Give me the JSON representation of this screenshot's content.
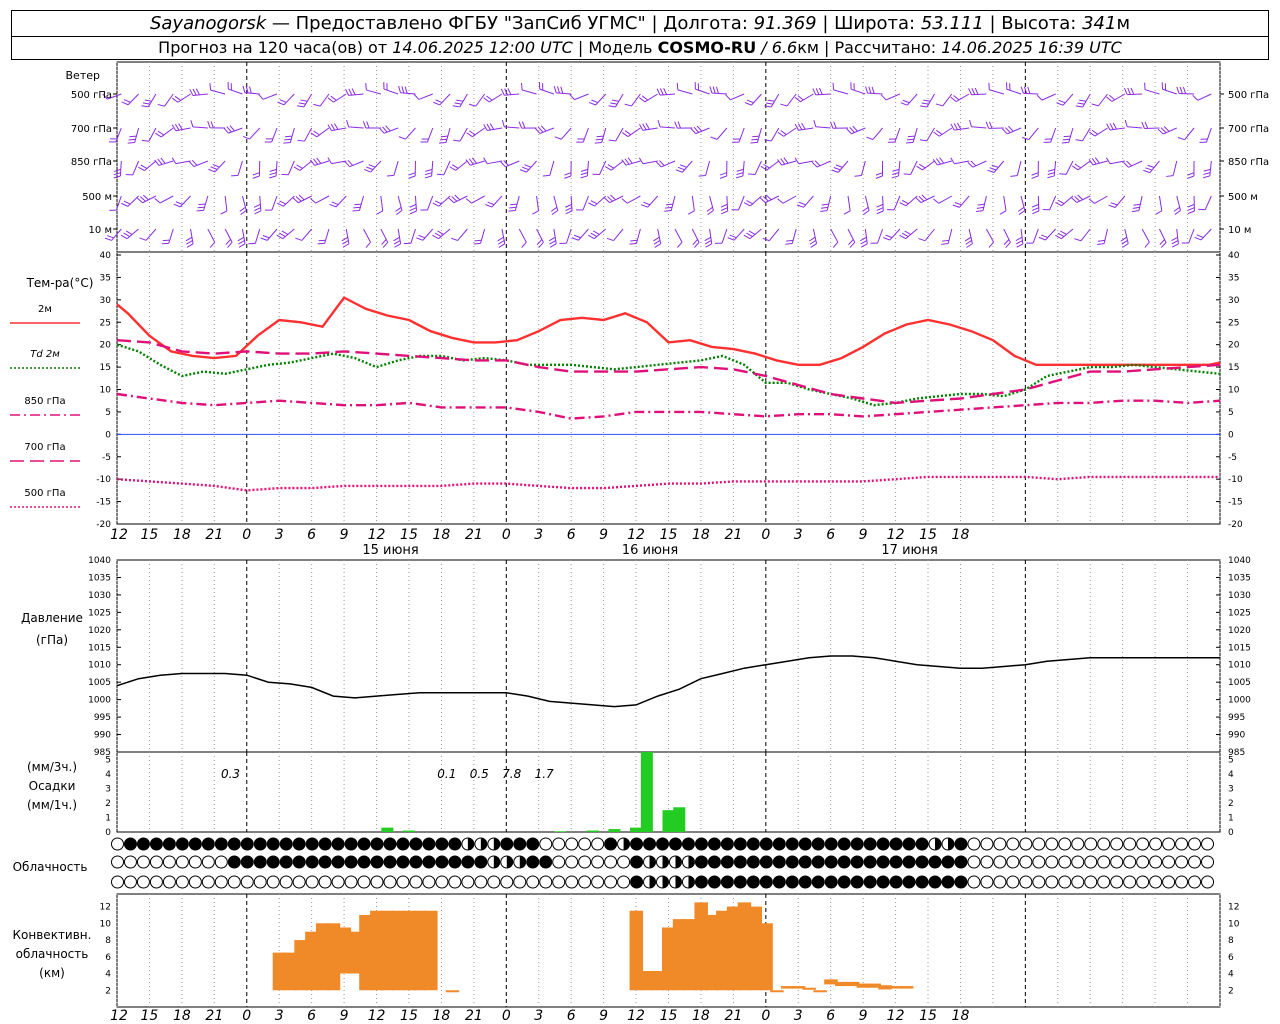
{
  "header": {
    "station": "Sayanogorsk",
    "dash": " — Предоставлено ФГБУ \"ЗапСиб УГМС\" | Долгота: ",
    "lon": "91.369",
    "lat_label": " | Широта: ",
    "lat": "53.111",
    "alt_label": " | Высота: ",
    "alt": "341",
    "alt_unit": "м",
    "forecast_label": "Прогноз на 120 часа(ов) от ",
    "forecast_date": "14.06.2025 12:00 UTC",
    "model_label": "  | Модель ",
    "model": "COSMO-RU",
    "model_res": " / 6.6",
    "model_res_unit": "км",
    "calc_label": " | Рассчитано: ",
    "calc_date": "14.06.2025 16:39 UTC"
  },
  "wind_panel": {
    "title": "Ветер",
    "levels": [
      "500 гПа",
      "700 гПа",
      "850 гПа",
      "500 м",
      "10  м"
    ]
  },
  "temp_panel": {
    "title": "Тем-ра(°C)",
    "legend": [
      {
        "label": "2м",
        "color": "#ff3030",
        "style": "solid"
      },
      {
        "label": "Td  2м",
        "color": "#008000",
        "style": "dotted"
      },
      {
        "label": "850 гПа",
        "color": "#e0107a",
        "style": "dashdot"
      },
      {
        "label": "700 гПа",
        "color": "#e0107a",
        "style": "dashed"
      },
      {
        "label": "500 гПа",
        "color": "#e0107a",
        "style": "dotted"
      }
    ],
    "yticks": [
      "40",
      "35",
      "30",
      "25",
      "20",
      "15",
      "10",
      "5",
      "0",
      "-5",
      "-10",
      "-15",
      "-20"
    ]
  },
  "time_axis": {
    "hour_labels": [
      "12",
      "15",
      "18",
      "21",
      "0",
      "3",
      "6",
      "9",
      "12",
      "15",
      "18",
      "21",
      "0",
      "3",
      "6",
      "9",
      "12",
      "15",
      "18",
      "21",
      "0",
      "3",
      "6",
      "9",
      "12",
      "15",
      "18"
    ],
    "dates": [
      "15 июня",
      "16 июня",
      "17 июня"
    ]
  },
  "pressure_panel": {
    "title_1": "Давление",
    "title_2": "(гПа)",
    "yticks": [
      "1040",
      "1035",
      "1030",
      "1025",
      "1020",
      "1015",
      "1010",
      "1005",
      "1000",
      "995",
      "990",
      "985"
    ]
  },
  "precip_panel": {
    "unit_1": "(мм/3ч.)",
    "title": "Осадки",
    "unit_2": "(мм/1ч.)",
    "yticks": [
      "5",
      "4",
      "3",
      "2",
      "1",
      "0"
    ],
    "labels": [
      {
        "text": "0.3",
        "hour": 10.5
      },
      {
        "text": "0.1",
        "hour": 30.5
      },
      {
        "text": "0.5",
        "hour": 33.5
      },
      {
        "text": "7.8",
        "hour": 36.5
      },
      {
        "text": "1.7",
        "hour": 39.5
      }
    ]
  },
  "cloud_panel": {
    "title": "Облачность"
  },
  "conv_panel": {
    "title_1": "Конвективн.",
    "title_2": "облачность",
    "title_3": "(км)",
    "yticks": [
      "12",
      "10",
      "8",
      "6",
      "4",
      "2"
    ]
  },
  "chart_data": [
    {
      "type": "line",
      "title": "Тем-ра(°C)",
      "x_unit": "hours since 14.06.2025 12:00 UTC",
      "ylim": [
        -20,
        40
      ],
      "series": [
        {
          "name": "2м",
          "color": "#ff3030",
          "x": [
            0,
            1,
            3,
            5,
            7,
            9,
            11,
            13,
            15,
            17,
            19,
            21,
            23,
            25,
            27,
            29,
            31,
            33,
            35,
            37,
            39,
            41,
            43,
            45,
            47,
            49,
            51,
            53,
            55,
            57,
            59,
            61,
            63,
            65,
            67,
            69,
            71,
            73,
            75,
            77,
            79,
            81,
            83,
            85,
            87,
            89,
            91,
            93,
            95,
            97,
            99,
            101,
            102
          ],
          "y": [
            29,
            27,
            22,
            18.5,
            17.5,
            17,
            17.5,
            22,
            25.5,
            25,
            24,
            30.5,
            28,
            26.5,
            25.5,
            23,
            21.5,
            20.5,
            20.5,
            21,
            23,
            25.5,
            26,
            25.5,
            27,
            25,
            20.5,
            21,
            19.5,
            19,
            18,
            16.5,
            15.5,
            15.5,
            17,
            19.5,
            22.5,
            24.5,
            25.5,
            24.5,
            23,
            21,
            17.5,
            15.5,
            15.5,
            15.5,
            15.5,
            15.5,
            15.5,
            15.5,
            15.5,
            15.5,
            16
          ]
        },
        {
          "name": "Td  2м",
          "color": "#008000",
          "x": [
            0,
            2,
            4,
            6,
            8,
            10,
            12,
            14,
            16,
            18,
            20,
            22,
            24,
            26,
            28,
            30,
            32,
            34,
            36,
            38,
            40,
            42,
            44,
            46,
            48,
            50,
            52,
            54,
            56,
            58,
            60,
            62,
            64,
            66,
            68,
            70,
            72,
            74,
            76,
            78,
            80,
            82,
            84,
            86,
            88,
            90,
            92,
            94,
            96,
            98,
            100,
            102
          ],
          "y": [
            20,
            18.5,
            15.5,
            13,
            14,
            13.5,
            14.5,
            15.5,
            16,
            17,
            18,
            17,
            15,
            16.5,
            17.5,
            17.5,
            16.5,
            17,
            16.5,
            15.5,
            15.5,
            15.5,
            15,
            14.5,
            15,
            15.5,
            16,
            16.5,
            17.5,
            15.5,
            11.5,
            11.5,
            10,
            9,
            8,
            6.5,
            7,
            8,
            8.5,
            9,
            9,
            8.5,
            10,
            13,
            14,
            15,
            15,
            15.5,
            15,
            14.5,
            14,
            13.5
          ]
        },
        {
          "name": "850 гПа",
          "color": "#e0107a",
          "x": [
            0,
            3,
            6,
            9,
            12,
            15,
            18,
            21,
            24,
            27,
            30,
            33,
            36,
            39,
            42,
            45,
            48,
            51,
            54,
            57,
            60,
            63,
            66,
            69,
            72,
            75,
            78,
            81,
            84,
            87,
            90,
            93,
            96,
            99,
            102
          ],
          "y": [
            9,
            8,
            7,
            6.5,
            7,
            7.5,
            7,
            6.5,
            6.5,
            7,
            6,
            6,
            6,
            5,
            3.5,
            4,
            5,
            5,
            5,
            4.5,
            4,
            4.5,
            4.5,
            4,
            4.5,
            5,
            5.5,
            6,
            6.5,
            7,
            7,
            7.5,
            7.5,
            7,
            7.5
          ]
        },
        {
          "name": "700 гПа",
          "color": "#e0107a",
          "x": [
            0,
            3,
            6,
            9,
            12,
            15,
            18,
            21,
            24,
            27,
            30,
            33,
            36,
            39,
            42,
            45,
            48,
            51,
            54,
            57,
            60,
            63,
            66,
            69,
            72,
            75,
            78,
            81,
            84,
            87,
            90,
            93,
            96,
            99,
            102
          ],
          "y": [
            21,
            20.5,
            18.5,
            18,
            18.5,
            18,
            18,
            18.5,
            18,
            17.5,
            17,
            16.5,
            16.5,
            15,
            14,
            14,
            14,
            14.5,
            15,
            14.5,
            13,
            11,
            9,
            8,
            7,
            7.5,
            8,
            9,
            10,
            12,
            14,
            14,
            14.5,
            15,
            15.5
          ]
        },
        {
          "name": "500 гПа",
          "color": "#e0107a",
          "x": [
            0,
            3,
            6,
            9,
            12,
            15,
            18,
            21,
            24,
            27,
            30,
            33,
            36,
            39,
            42,
            45,
            48,
            51,
            54,
            57,
            60,
            63,
            66,
            69,
            72,
            75,
            78,
            81,
            84,
            87,
            90,
            93,
            96,
            99,
            102
          ],
          "y": [
            -10,
            -10.5,
            -11,
            -11.5,
            -12.5,
            -12,
            -12,
            -11.5,
            -11.5,
            -11.5,
            -11.5,
            -11,
            -11,
            -11.5,
            -12,
            -12,
            -11.5,
            -11,
            -11,
            -10.5,
            -10.5,
            -10.5,
            -10.5,
            -10.5,
            -10,
            -9.5,
            -9.5,
            -9.5,
            -9.5,
            -10,
            -9.5,
            -9.5,
            -9.5,
            -9.5,
            -9.5
          ]
        }
      ]
    },
    {
      "type": "line",
      "title": "Давление",
      "ylim": [
        985,
        1040
      ],
      "series": [
        {
          "name": "Давление",
          "color": "#000000",
          "x": [
            0,
            2,
            4,
            6,
            8,
            10,
            12,
            14,
            16,
            18,
            20,
            22,
            24,
            26,
            28,
            30,
            32,
            34,
            36,
            38,
            40,
            42,
            44,
            46,
            48,
            50,
            52,
            54,
            56,
            58,
            60,
            62,
            64,
            66,
            68,
            70,
            72,
            74,
            76,
            78,
            80,
            82,
            84,
            86,
            88,
            90,
            92,
            94,
            96,
            98,
            100,
            102
          ],
          "y": [
            1004,
            1006,
            1007,
            1007.5,
            1007.5,
            1007.5,
            1007,
            1005,
            1004.5,
            1003.5,
            1001,
            1000.5,
            1001,
            1001.5,
            1002,
            1002,
            1002,
            1002,
            1002,
            1001,
            999.5,
            999,
            998.5,
            998,
            998.5,
            1001,
            1003,
            1006,
            1007.5,
            1009,
            1010,
            1011,
            1012,
            1012.5,
            1012.5,
            1012,
            1011,
            1010,
            1009.5,
            1009,
            1009,
            1009.5,
            1010,
            1011,
            1011.5,
            1012,
            1012,
            1012,
            1012,
            1012,
            1012,
            1012
          ]
        }
      ]
    },
    {
      "type": "bar",
      "title": "Осадки",
      "ylim": [
        0,
        5.5
      ],
      "x": [
        25,
        27,
        41,
        44,
        46,
        48,
        49,
        51,
        52,
        54
      ],
      "values": [
        0.3,
        0.1,
        0.05,
        0.1,
        0.2,
        0.3,
        5.5,
        1.5,
        1.7,
        0
      ],
      "color": "#22cc22"
    },
    {
      "type": "bar",
      "title": "Конвективн. облачность",
      "ylim": [
        0,
        13
      ],
      "color": "#f08a28",
      "bars": [
        [
          15,
          6.5,
          2
        ],
        [
          16,
          6.5,
          2
        ],
        [
          17,
          8,
          2
        ],
        [
          18,
          9,
          2
        ],
        [
          19,
          10,
          2
        ],
        [
          20,
          10,
          2
        ],
        [
          21,
          9.5,
          4
        ],
        [
          22,
          9,
          4
        ],
        [
          23,
          11,
          2
        ],
        [
          24,
          11.5,
          2
        ],
        [
          25,
          11.5,
          2
        ],
        [
          26,
          11.5,
          2
        ],
        [
          27,
          11.5,
          2
        ],
        [
          28,
          11.5,
          2
        ],
        [
          29,
          11.5,
          2
        ],
        [
          31,
          2,
          1.8
        ],
        [
          48,
          11.5,
          2
        ],
        [
          49,
          4.3,
          2
        ],
        [
          50,
          4.3,
          2
        ],
        [
          51,
          9.5,
          2
        ],
        [
          52,
          10.5,
          2
        ],
        [
          53,
          10.5,
          2
        ],
        [
          54,
          12.5,
          2
        ],
        [
          55,
          11,
          2
        ],
        [
          56,
          11.5,
          2
        ],
        [
          57,
          12,
          2
        ],
        [
          58,
          12.5,
          2
        ],
        [
          59,
          12,
          2
        ],
        [
          60,
          10,
          2
        ],
        [
          61,
          2,
          2
        ],
        [
          62,
          2.5,
          2.2
        ],
        [
          63,
          2.5,
          2.2
        ],
        [
          64,
          2.3,
          2.1
        ],
        [
          65,
          2,
          1.8
        ],
        [
          66,
          3.3,
          2.7
        ],
        [
          67,
          3,
          2.5
        ],
        [
          68,
          3,
          2.5
        ],
        [
          69,
          2.8,
          2.3
        ],
        [
          70,
          2.8,
          2.3
        ],
        [
          71,
          2.6,
          2.1
        ],
        [
          72,
          2.5,
          2.2
        ],
        [
          73,
          2.5,
          2.2
        ]
      ]
    }
  ]
}
